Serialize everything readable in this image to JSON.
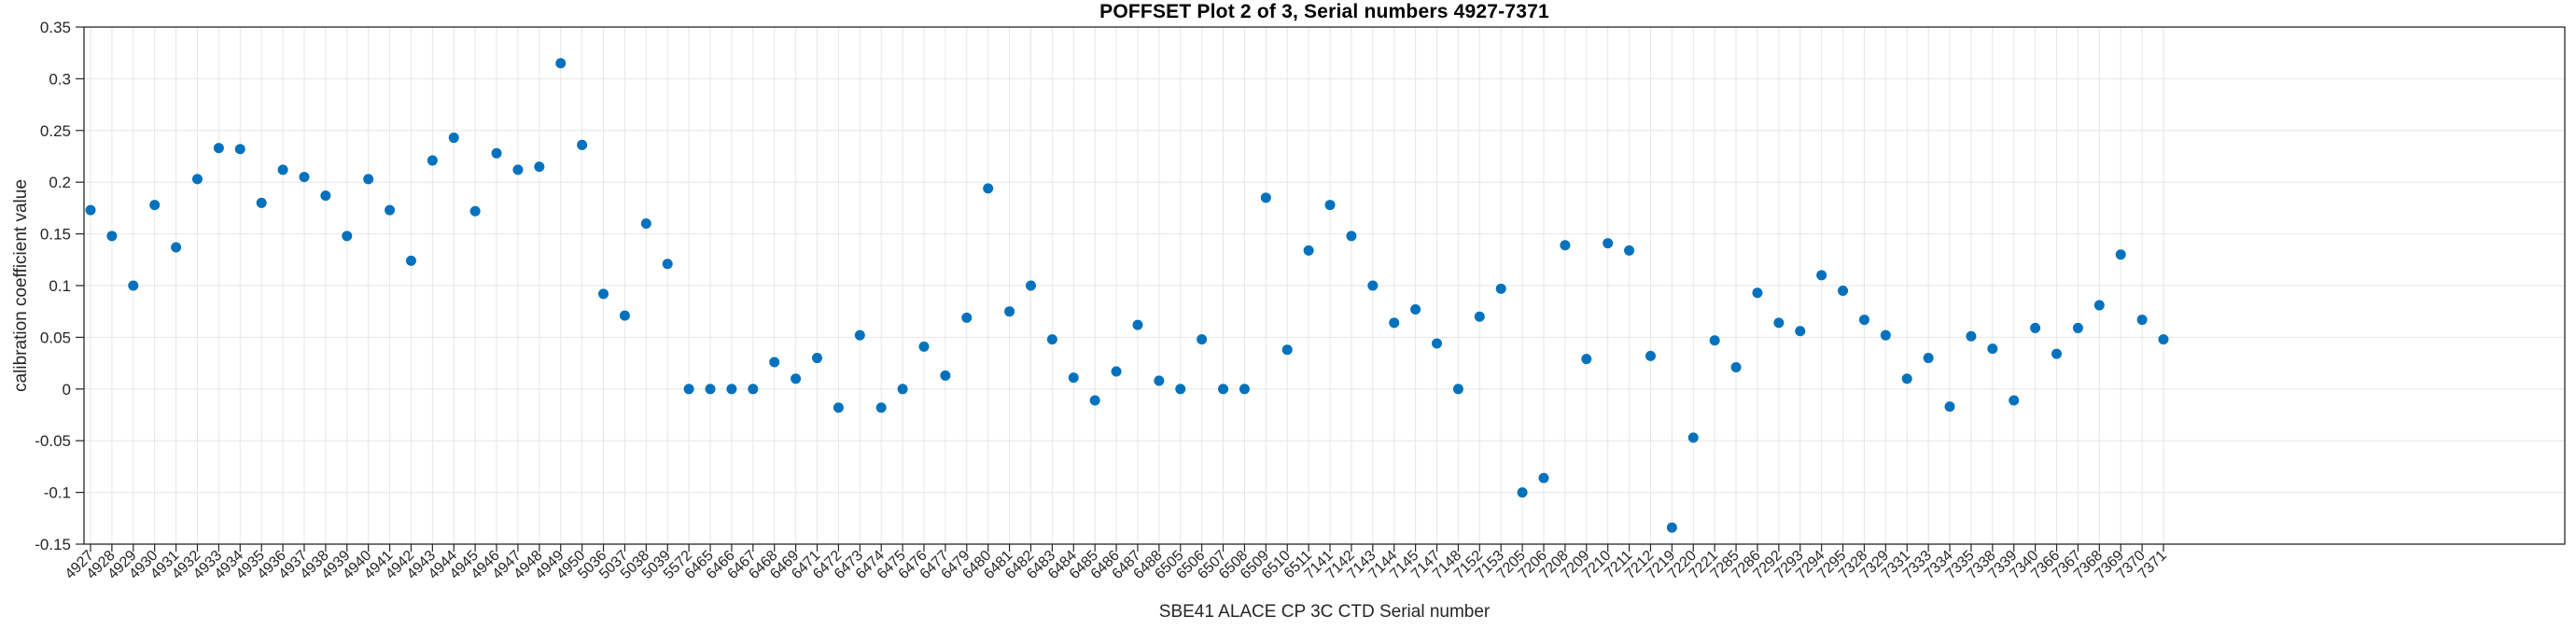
{
  "chart_data": {
    "type": "scatter",
    "title": "POFFSET Plot 2 of 3, Serial numbers 4927-7371",
    "xlabel": "SBE41 ALACE CP 3C CTD Serial number",
    "ylabel": "calibration coefficient value",
    "ylim": [
      -0.15,
      0.35
    ],
    "yticks": [
      "0.35",
      "0.3",
      "0.25",
      "0.2",
      "0.15",
      "0.1",
      "0.05",
      "0",
      "-0.05",
      "-0.1",
      "-0.15"
    ],
    "grid": true,
    "legend": "none",
    "marker": "filled-circle",
    "marker_color": "#0072BD",
    "axis_color": "#262626",
    "grid_color": "#e6e6e6",
    "categories": [
      "4927",
      "4928",
      "4929",
      "4930",
      "4931",
      "4932",
      "4933",
      "4934",
      "4935",
      "4936",
      "4937",
      "4938",
      "4939",
      "4940",
      "4941",
      "4942",
      "4943",
      "4944",
      "4945",
      "4946",
      "4947",
      "4948",
      "4949",
      "4950",
      "5036",
      "5037",
      "5038",
      "5039",
      "5572",
      "6465",
      "6466",
      "6467",
      "6468",
      "6469",
      "6471",
      "6472",
      "6473",
      "6474",
      "6475",
      "6476",
      "6477",
      "6479",
      "6480",
      "6481",
      "6482",
      "6483",
      "6484",
      "6485",
      "6486",
      "6487",
      "6488",
      "6505",
      "6506",
      "6507",
      "6508",
      "6509",
      "6510",
      "6511",
      "7141",
      "7142",
      "7143",
      "7144",
      "7145",
      "7147",
      "7148",
      "7152",
      "7153",
      "7205",
      "7206",
      "7208",
      "7209",
      "7210",
      "7211",
      "7212",
      "7219",
      "7220",
      "7221",
      "7285",
      "7286",
      "7292",
      "7293",
      "7294",
      "7295",
      "7328",
      "7329",
      "7331",
      "7333",
      "7334",
      "7335",
      "7338",
      "7339",
      "7340",
      "7366",
      "7367",
      "7368",
      "7369",
      "7370",
      "7371"
    ],
    "values": [
      0.173,
      0.148,
      0.1,
      0.178,
      0.137,
      0.203,
      0.233,
      0.232,
      0.18,
      0.212,
      0.205,
      0.187,
      0.148,
      0.203,
      0.173,
      0.124,
      0.221,
      0.243,
      0.172,
      0.228,
      0.212,
      0.215,
      0.315,
      0.236,
      0.092,
      0.071,
      0.16,
      0.121,
      0.0,
      0.0,
      0.0,
      0.0,
      0.026,
      0.01,
      0.03,
      -0.018,
      0.052,
      -0.018,
      0.0,
      0.041,
      0.013,
      0.069,
      0.194,
      0.075,
      0.1,
      0.048,
      0.011,
      -0.011,
      0.017,
      0.062,
      0.008,
      0.0,
      0.048,
      0.0,
      0.0,
      0.185,
      0.038,
      0.134,
      0.178,
      0.148,
      0.1,
      0.064,
      0.077,
      0.044,
      0.0,
      0.07,
      0.097,
      -0.1,
      -0.086,
      0.139,
      0.029,
      0.141,
      0.134,
      0.032,
      -0.134,
      -0.047,
      0.047,
      0.021,
      0.093,
      0.064,
      0.056,
      0.11,
      0.095,
      0.067,
      0.052,
      0.01,
      0.03,
      -0.017,
      0.051,
      0.039,
      -0.011,
      0.059,
      0.034,
      0.059,
      0.081,
      0.13,
      0.067,
      0.048
    ]
  }
}
